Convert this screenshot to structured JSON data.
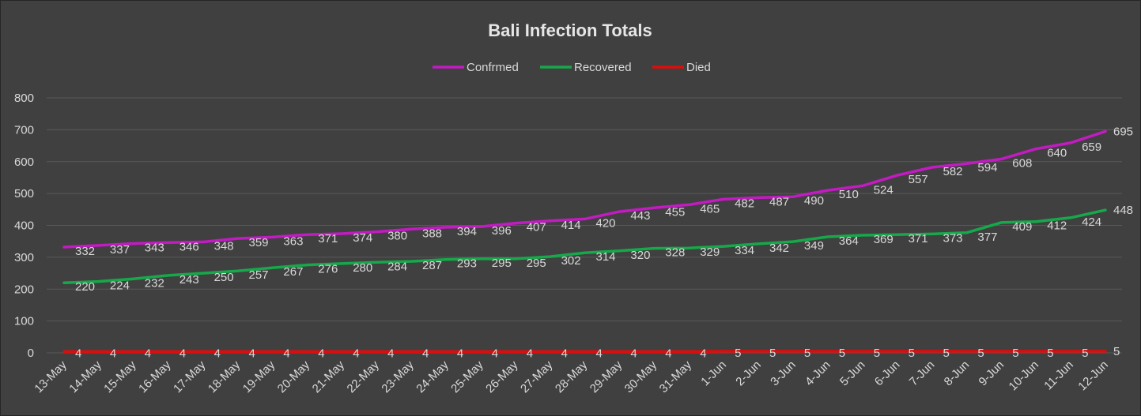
{
  "chart_data": {
    "type": "line",
    "title": "Bali Infection Totals",
    "xlabel": "",
    "ylabel": "",
    "ylim": [
      0,
      800
    ],
    "yticks": [
      0,
      100,
      200,
      300,
      400,
      500,
      600,
      700,
      800
    ],
    "grid": true,
    "legend_position": "top",
    "categories": [
      "13-May",
      "14-May",
      "15-May",
      "16-May",
      "17-May",
      "18-May",
      "19-May",
      "20-May",
      "21-May",
      "22-May",
      "23-May",
      "24-May",
      "25-May",
      "26-May",
      "27-May",
      "28-May",
      "29-May",
      "30-May",
      "31-May",
      "1-Jun",
      "2-Jun",
      "3-Jun",
      "4-Jun",
      "5-Jun",
      "6-Jun",
      "7-Jun",
      "8-Jun",
      "9-Jun",
      "10-Jun",
      "11-Jun",
      "12-Jun"
    ],
    "series": [
      {
        "name": "Confrmed",
        "color": "#c21bc2",
        "values": [
          332,
          337,
          343,
          346,
          348,
          359,
          363,
          371,
          374,
          380,
          388,
          394,
          396,
          407,
          414,
          420,
          443,
          455,
          465,
          482,
          487,
          490,
          510,
          524,
          557,
          582,
          594,
          608,
          640,
          659,
          695
        ]
      },
      {
        "name": "Recovered",
        "color": "#16a84a",
        "values": [
          220,
          224,
          232,
          243,
          250,
          257,
          267,
          276,
          280,
          284,
          287,
          293,
          295,
          295,
          302,
          314,
          320,
          328,
          329,
          334,
          342,
          349,
          364,
          369,
          371,
          373,
          377,
          409,
          412,
          424,
          448
        ]
      },
      {
        "name": "Died",
        "color": "#e00b0b",
        "values": [
          4,
          4,
          4,
          4,
          4,
          4,
          4,
          4,
          4,
          4,
          4,
          4,
          4,
          4,
          4,
          4,
          4,
          4,
          4,
          5,
          5,
          5,
          5,
          5,
          5,
          5,
          5,
          5,
          5,
          5,
          5
        ]
      }
    ]
  }
}
